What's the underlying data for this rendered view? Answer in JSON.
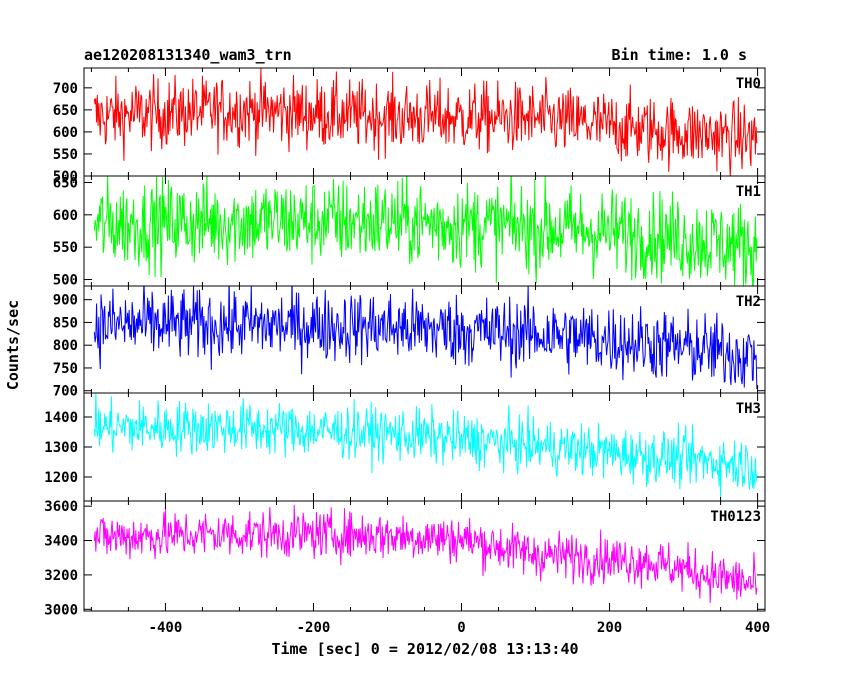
{
  "chart_data": {
    "type": "line",
    "title": "ae120208131340_wam3_trn",
    "subtitle": "Bin time: 1.0 s",
    "xlabel": "Time [sec] 0 = 2012/02/08 13:13:40",
    "ylabel": "Counts/sec",
    "xlim": [
      -510,
      410
    ],
    "xticks": [
      -400,
      -200,
      0,
      200,
      400
    ],
    "x_range": [
      -496,
      399
    ],
    "panels": [
      {
        "name": "TH0",
        "color": "#ff0000",
        "ylim": [
          500,
          745
        ],
        "yticks": [
          500,
          550,
          600,
          650,
          700
        ],
        "trend": [
          [
            -496,
            635
          ],
          [
            -300,
            650
          ],
          [
            -100,
            635
          ],
          [
            100,
            630
          ],
          [
            250,
            605
          ],
          [
            399,
            585
          ]
        ],
        "noise": 40
      },
      {
        "name": "TH1",
        "color": "#00ff00",
        "ylim": [
          490,
          660
        ],
        "yticks": [
          500,
          550,
          600,
          650
        ],
        "trend": [
          [
            -496,
            585
          ],
          [
            -300,
            590
          ],
          [
            -100,
            590
          ],
          [
            100,
            580
          ],
          [
            250,
            570
          ],
          [
            399,
            550
          ]
        ],
        "noise": 34
      },
      {
        "name": "TH2",
        "color": "#0000ff",
        "ylim": [
          695,
          930
        ],
        "yticks": [
          700,
          750,
          800,
          850,
          900
        ],
        "trend": [
          [
            -496,
            845
          ],
          [
            -300,
            845
          ],
          [
            -100,
            840
          ],
          [
            100,
            825
          ],
          [
            250,
            805
          ],
          [
            399,
            775
          ]
        ],
        "noise": 40
      },
      {
        "name": "TH3",
        "color": "#00ffff",
        "ylim": [
          1120,
          1480
        ],
        "yticks": [
          1200,
          1300,
          1400
        ],
        "trend": [
          [
            -496,
            1365
          ],
          [
            -300,
            1365
          ],
          [
            -100,
            1345
          ],
          [
            100,
            1305
          ],
          [
            250,
            1270
          ],
          [
            399,
            1240
          ]
        ],
        "noise": 45
      },
      {
        "name": "TH0123",
        "color": "#ff00ff",
        "ylim": [
          2990,
          3630
        ],
        "yticks": [
          3000,
          3200,
          3400,
          3600
        ],
        "trend": [
          [
            -496,
            3420
          ],
          [
            -300,
            3440
          ],
          [
            -100,
            3430
          ],
          [
            0,
            3410
          ],
          [
            100,
            3320
          ],
          [
            250,
            3280
          ],
          [
            399,
            3140
          ]
        ],
        "noise": 70
      }
    ]
  }
}
